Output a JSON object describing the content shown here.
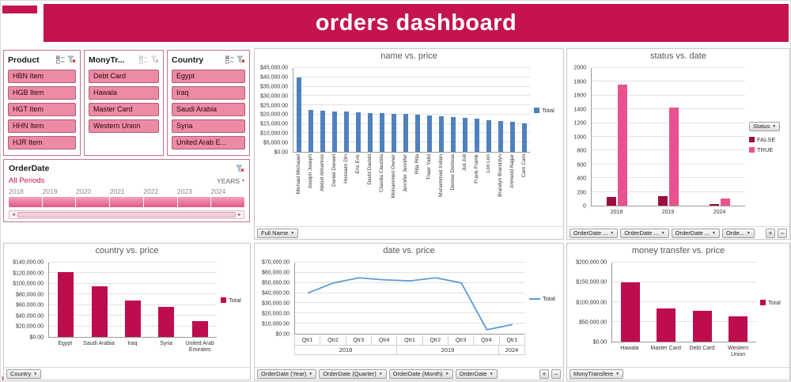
{
  "header": {
    "title": "orders dashboard"
  },
  "icons": {
    "dropdown": "▼",
    "small_dropdown": "▾",
    "scroll_left": "◄",
    "scroll_right": "►",
    "expand": "+",
    "collapse": "−",
    "multi_select": "checklist-icon",
    "clear_filter": "funnel-x-icon"
  },
  "slicers": {
    "product": {
      "title": "Product",
      "items": [
        "HBN Item",
        "HGB Item",
        "HGT Item",
        "HHN Item",
        "HJR Item"
      ]
    },
    "money_transfer": {
      "title": "MonyTr...",
      "items": [
        "Debt Card",
        "Hawala",
        "Master Card",
        "Western Union"
      ]
    },
    "country": {
      "title": "Country",
      "items": [
        "Egypt",
        "Iraq",
        "Saudi Arabia",
        "Syria",
        "United Arab E..."
      ]
    }
  },
  "timeline": {
    "title": "OrderDate",
    "selection_label": "All Periods",
    "granularity": "YEARS",
    "years": [
      "2018",
      "2019",
      "2020",
      "2021",
      "2022",
      "2023",
      "2024"
    ]
  },
  "chart_data": [
    {
      "type": "bar",
      "title": "name vs. price",
      "ylabel": "price",
      "xlabel": "full name",
      "ymax": 45000,
      "ystep": 5000,
      "yfmt": "usd",
      "color": "#4f81bd",
      "categories": [
        "Michael Michaael",
        "Joseph Joseph",
        "Abdull Almahros",
        "Daniel Daneel",
        "Hossaim Din",
        "Eric Eric",
        "David Davidd",
        "Claudia Claudda",
        "Mohammed Owner",
        "Jennifer Jennifer",
        "Rita Rita",
        "Thaer Yaild",
        "Muhammad Indian",
        "Denise Denisse",
        "Juli Juli",
        "Frank Framk",
        "Lori Lori",
        "Brandyn Branddyn",
        "Ahmedd Najjar",
        "Cam Cam"
      ],
      "values": [
        40000,
        22500,
        22000,
        21800,
        21500,
        21200,
        21000,
        20800,
        20500,
        20200,
        20000,
        19600,
        19200,
        18800,
        18300,
        17800,
        17200,
        16600,
        16000,
        15400
      ],
      "legend": [
        {
          "label": "Total",
          "color": "#4f81bd",
          "shape": "box"
        }
      ],
      "buttons": [
        "Full Name"
      ]
    },
    {
      "type": "grouped-bar",
      "title": "status vs. date",
      "ymax": 2000,
      "ystep": 200,
      "yfmt": "plain",
      "categories": [
        "2018",
        "2019",
        "2024"
      ],
      "series": [
        {
          "name": "FALSE",
          "color": "#9c0c3f",
          "values": [
            130,
            140,
            20
          ]
        },
        {
          "name": "TRUE",
          "color": "#e8538f",
          "values": [
            1760,
            1430,
            100
          ]
        }
      ],
      "legend": [
        {
          "label": "FALSE",
          "color": "#9c0c3f",
          "shape": "box"
        },
        {
          "label": "TRUE",
          "color": "#e8538f",
          "shape": "box"
        }
      ],
      "side_button": "Status",
      "buttons": [
        "OrderDate ...",
        "OrderDate ...",
        "OrderDate ...",
        "Orde..."
      ],
      "zoom_buttons": true
    },
    {
      "type": "bar",
      "title": "country vs. price",
      "ymax": 140000,
      "ystep": 20000,
      "yfmt": "usd",
      "color": "#be0d4e",
      "categories": [
        "Egypt",
        "Saudi Arabia",
        "Iraq",
        "Syria",
        "United Arab Emirates"
      ],
      "values": [
        122000,
        95000,
        68000,
        56000,
        30000
      ],
      "legend": [
        {
          "label": "Total",
          "color": "#be0d4e",
          "shape": "box"
        }
      ],
      "buttons": [
        "Country"
      ]
    },
    {
      "type": "line",
      "title": "date vs. price",
      "ymax": 70000,
      "ystep": 10000,
      "yfmt": "usd",
      "color": "#5b9bd5",
      "x_quarters": [
        "Qtr1",
        "Qtr2",
        "Qtr3",
        "Qtr4",
        "Qtr1",
        "Qtr2",
        "Qtr3",
        "Qtr4",
        "Qtr1"
      ],
      "x_years": [
        {
          "label": "2018",
          "span": 4
        },
        {
          "label": "2019",
          "span": 4
        },
        {
          "label": "2024",
          "span": 1
        }
      ],
      "values": [
        40000,
        50000,
        55000,
        53000,
        52000,
        55000,
        50000,
        4000,
        9000
      ],
      "legend": [
        {
          "label": "Total",
          "color": "#5b9bd5",
          "shape": "line"
        }
      ],
      "buttons": [
        "OrderDate (Year)",
        "OrderDate (Quarter)",
        "OrderDate (Month)",
        "OrderDate"
      ],
      "zoom_buttons": true
    },
    {
      "type": "bar",
      "title": "money transfer vs. price",
      "ymax": 200000,
      "ystep": 50000,
      "yfmt": "usd",
      "color": "#be0d4e",
      "categories": [
        "Hawala",
        "Master Card",
        "Debt Card",
        "Western Union"
      ],
      "values": [
        150000,
        85000,
        78000,
        65000
      ],
      "legend": [
        {
          "label": "Total",
          "color": "#be0d4e",
          "shape": "box"
        }
      ],
      "buttons": [
        "MonyTransfere"
      ]
    }
  ]
}
